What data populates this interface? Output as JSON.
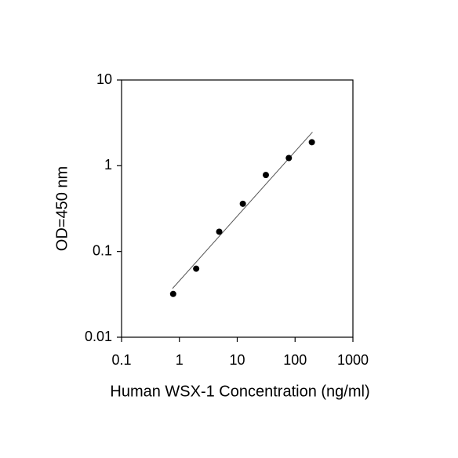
{
  "chart_data": {
    "type": "scatter",
    "x_label": "Human WSX-1 Concentration (ng/ml)",
    "y_label": "OD=450 nm",
    "x": [
      0.78,
      1.95,
      4.88,
      12.5,
      31.25,
      78,
      195
    ],
    "values": [
      0.032,
      0.063,
      0.17,
      0.36,
      0.78,
      1.23,
      1.88
    ],
    "color": "#000000",
    "fit_line": {
      "x": [
        0.76,
        200
      ],
      "y": [
        0.037,
        2.47
      ],
      "color": "#555555"
    },
    "xscale": "log",
    "yscale": "log",
    "xlim": [
      0.1,
      1000
    ],
    "ylim": [
      0.01,
      10
    ],
    "xticks": [
      0.1,
      1,
      10,
      100,
      1000
    ],
    "yticks": [
      0.01,
      0.1,
      1,
      10
    ],
    "grid": false
  }
}
